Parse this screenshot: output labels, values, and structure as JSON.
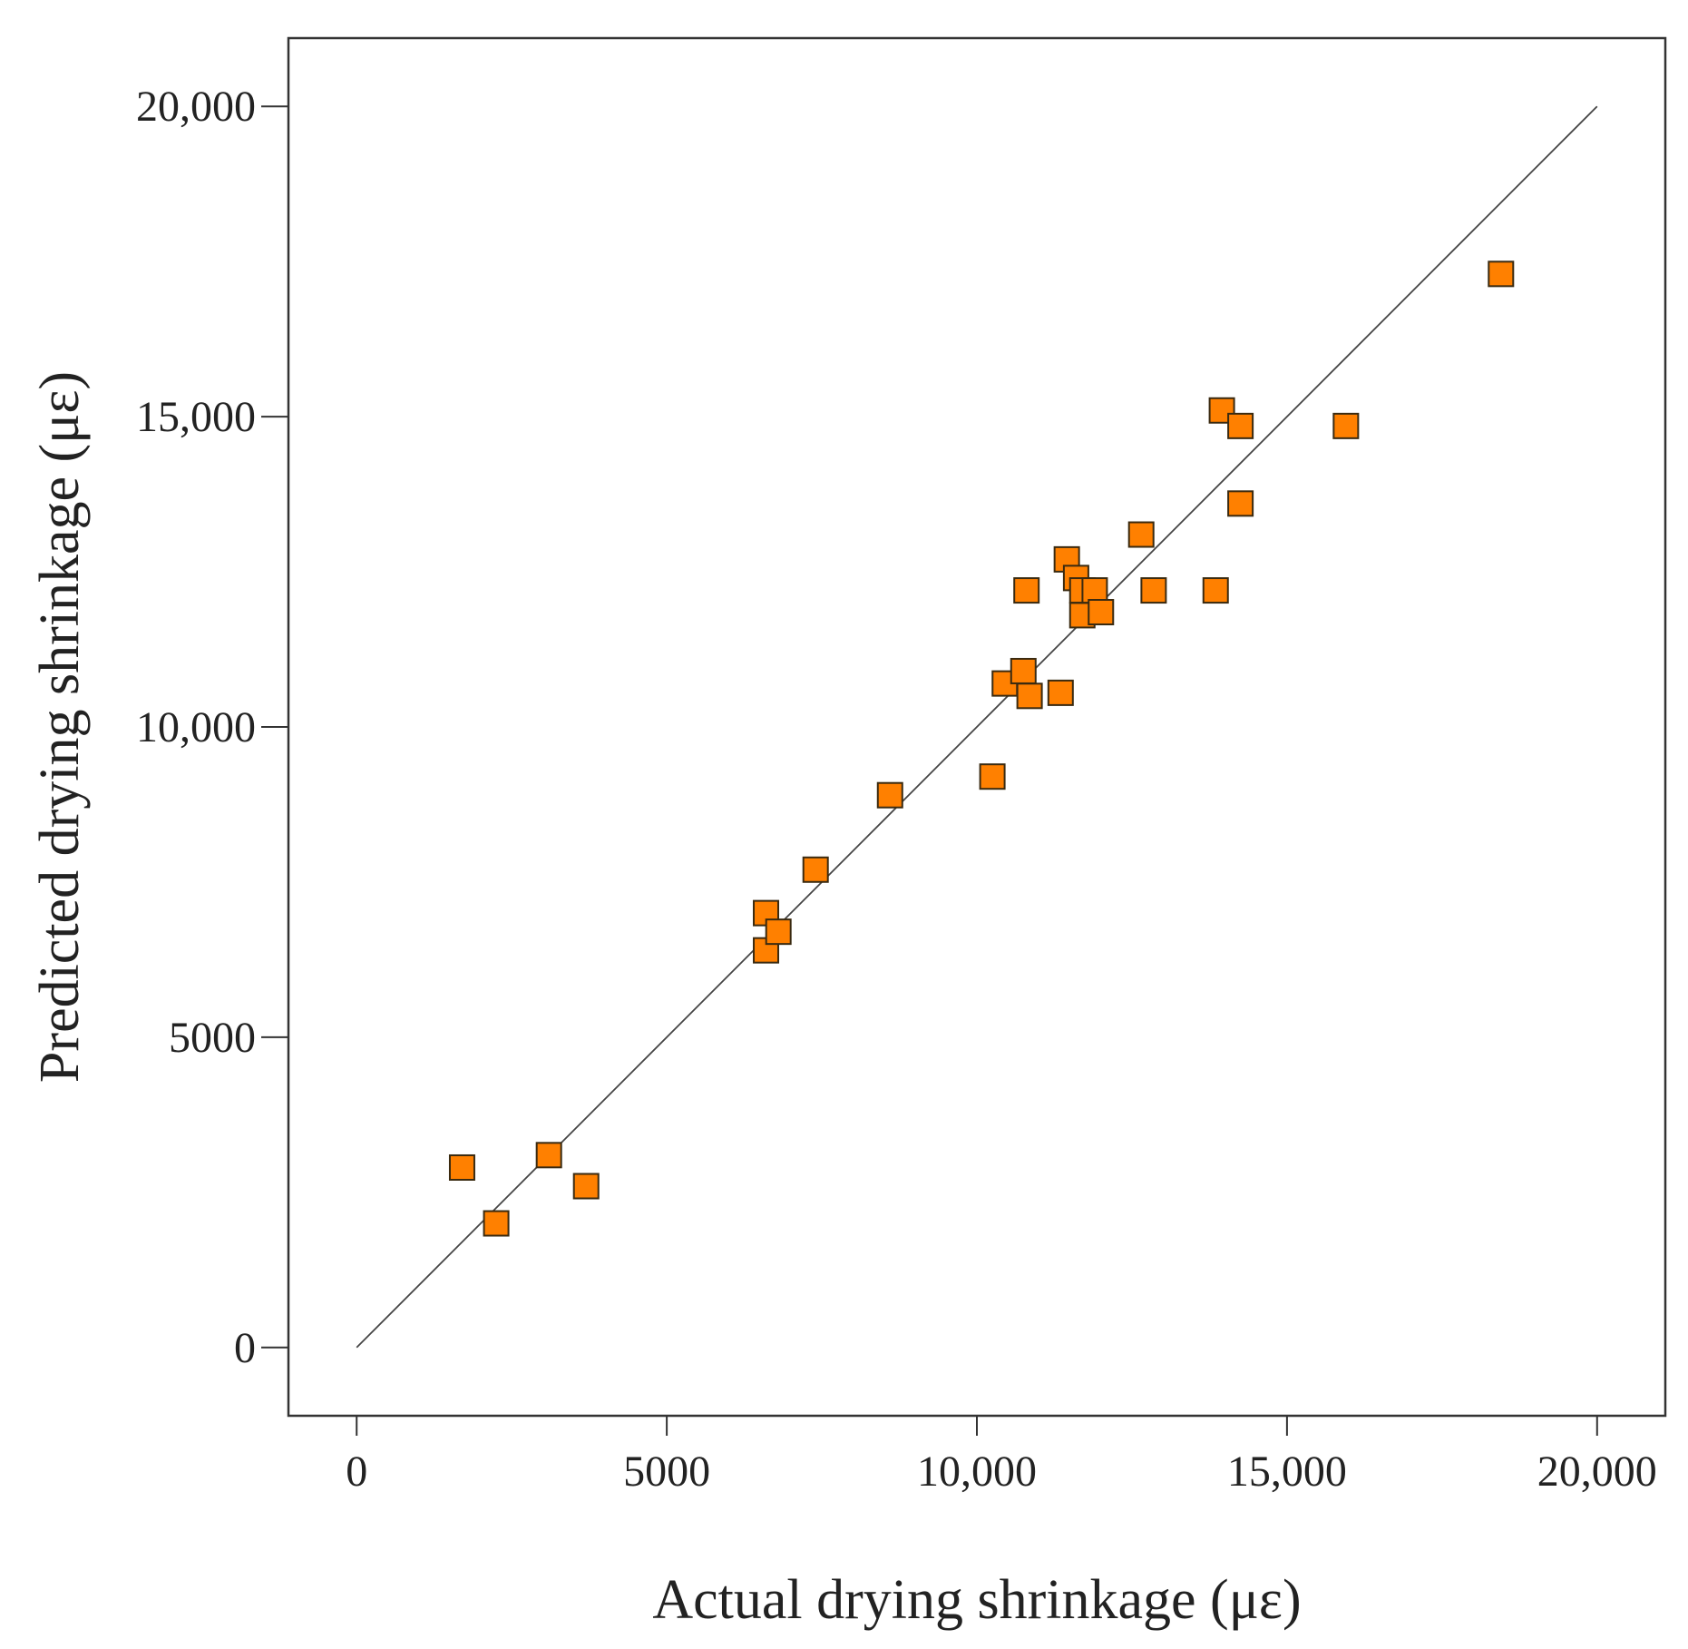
{
  "colors": {
    "marker_fill": "#ff8000",
    "marker_stroke": "#3a2a10",
    "frame": "#333333",
    "reference_line": "#444444"
  },
  "chart_data": {
    "type": "scatter",
    "title": "",
    "xlabel": "Actual drying shrinkage (με)",
    "ylabel": "Predicted drying shrinkage (με)",
    "xlim": [
      -1100,
      21100
    ],
    "ylim": [
      -1100,
      21100
    ],
    "x_ticks": [
      0,
      5000,
      10000,
      15000,
      20000
    ],
    "x_tick_labels": [
      "0",
      "5000",
      "10,000",
      "15,000",
      "20,000"
    ],
    "y_ticks": [
      0,
      5000,
      10000,
      15000,
      20000
    ],
    "y_tick_labels": [
      "0",
      "5000",
      "10,000",
      "15,000",
      "20,000"
    ],
    "grid": false,
    "reference_line": {
      "from": [
        0,
        0
      ],
      "to": [
        20000,
        20000
      ]
    },
    "marker": "square",
    "points": [
      {
        "x": 1700,
        "y": 2900
      },
      {
        "x": 2250,
        "y": 2000
      },
      {
        "x": 3100,
        "y": 3100
      },
      {
        "x": 3700,
        "y": 2600
      },
      {
        "x": 6600,
        "y": 7000
      },
      {
        "x": 6600,
        "y": 6400
      },
      {
        "x": 6800,
        "y": 6700
      },
      {
        "x": 7400,
        "y": 7700
      },
      {
        "x": 8600,
        "y": 8900
      },
      {
        "x": 10250,
        "y": 9200
      },
      {
        "x": 10450,
        "y": 10700
      },
      {
        "x": 10750,
        "y": 10900
      },
      {
        "x": 10850,
        "y": 10500
      },
      {
        "x": 10800,
        "y": 12200
      },
      {
        "x": 11350,
        "y": 10550
      },
      {
        "x": 11450,
        "y": 12700
      },
      {
        "x": 11600,
        "y": 12400
      },
      {
        "x": 11700,
        "y": 12200
      },
      {
        "x": 11700,
        "y": 11800
      },
      {
        "x": 11900,
        "y": 12200
      },
      {
        "x": 12000,
        "y": 11850
      },
      {
        "x": 12650,
        "y": 13100
      },
      {
        "x": 12850,
        "y": 12200
      },
      {
        "x": 13850,
        "y": 12200
      },
      {
        "x": 13950,
        "y": 15100
      },
      {
        "x": 14250,
        "y": 14850
      },
      {
        "x": 14250,
        "y": 13600
      },
      {
        "x": 15950,
        "y": 14850
      },
      {
        "x": 18450,
        "y": 17300
      }
    ]
  }
}
